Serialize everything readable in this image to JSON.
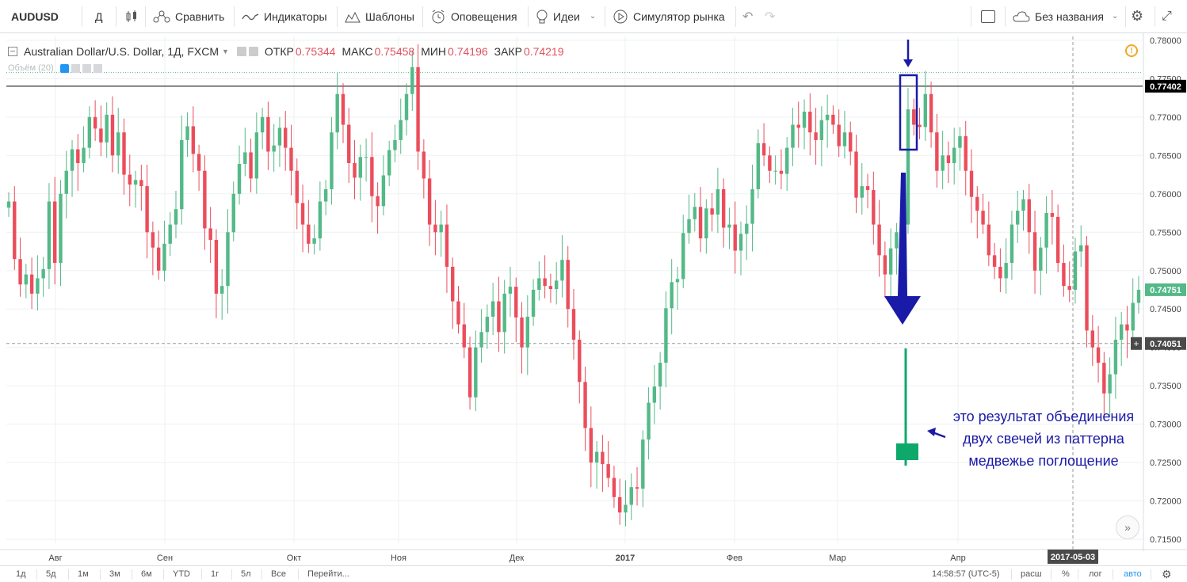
{
  "toolbar": {
    "symbol": "AUDUSD",
    "interval": "Д",
    "compare": "Сравнить",
    "indicators": "Индикаторы",
    "templates": "Шаблоны",
    "alerts": "Оповещения",
    "ideas": "Идеи",
    "simulator": "Симулятор рынка",
    "layout_name": "Без названия"
  },
  "legend": {
    "title": "Australian Dollar/U.S. Dollar, 1Д, FXCM",
    "open_label": "ОТКР",
    "open": "0.75344",
    "high_label": "МАКС",
    "high": "0.75458",
    "low_label": "МИН",
    "low": "0.74196",
    "close_label": "ЗАКР",
    "close": "0.74219",
    "volume": "Объём (20)"
  },
  "annotation": {
    "line1": "это результат объединения",
    "line2": "двух свечей из паттерна",
    "line3": "медвежье поглощение"
  },
  "price_axis": {
    "ticks": [
      "0.78000",
      "0.77500",
      "0.77000",
      "0.76500",
      "0.76000",
      "0.75500",
      "0.75000",
      "0.74500",
      "0.74000",
      "0.73500",
      "0.73000",
      "0.72500",
      "0.72000",
      "0.71500"
    ],
    "label_hline": "0.77402",
    "label_last": "0.74751",
    "label_cross": "0.74051"
  },
  "time_axis": {
    "labels": [
      "Авг",
      "Сен",
      "Окт",
      "Ноя",
      "Дек",
      "2017",
      "Фев",
      "Мар",
      "Апр"
    ],
    "crosshair_date": "2017-05-03"
  },
  "bottom": {
    "ranges": [
      "1д",
      "5д",
      "1м",
      "3м",
      "6м",
      "YTD",
      "1г",
      "5л",
      "Все"
    ],
    "goto": "Перейти...",
    "time": "14:58:57 (UTC-5)",
    "ext": "расш",
    "pct": "%",
    "log": "лог",
    "auto": "авто"
  },
  "colors": {
    "up": "#53b987",
    "down": "#eb4d5c",
    "annotation": "#1a1aa8",
    "accent_green": "#0fa86b",
    "auto_blue": "#2196f3"
  },
  "chart_data": {
    "type": "candlestick",
    "symbol": "Australian Dollar/U.S. Dollar, 1Д, FXCM",
    "ylim": [
      0.7145,
      0.7805
    ],
    "hline": 0.77402,
    "dotted_hline": 0.7758,
    "crosshair_price": 0.74051,
    "last_price": 0.74751,
    "closes": [
      0.759,
      0.7515,
      0.7482,
      0.7495,
      0.747,
      0.749,
      0.7502,
      0.759,
      0.751,
      0.76,
      0.763,
      0.7658,
      0.764,
      0.766,
      0.77,
      0.7685,
      0.7667,
      0.7703,
      0.765,
      0.768,
      0.7625,
      0.7612,
      0.7618,
      0.761,
      0.755,
      0.753,
      0.75,
      0.7535,
      0.756,
      0.758,
      0.767,
      0.7688,
      0.7652,
      0.763,
      0.7555,
      0.754,
      0.747,
      0.748,
      0.755,
      0.76,
      0.7639,
      0.7654,
      0.762,
      0.768,
      0.77,
      0.7655,
      0.7663,
      0.7686,
      0.766,
      0.763,
      0.7588,
      0.756,
      0.7535,
      0.7542,
      0.759,
      0.7606,
      0.768,
      0.773,
      0.769,
      0.764,
      0.7621,
      0.7648,
      0.7648,
      0.7597,
      0.7584,
      0.7624,
      0.7657,
      0.767,
      0.7696,
      0.773,
      0.7765,
      0.7655,
      0.762,
      0.756,
      0.755,
      0.756,
      0.7505,
      0.746,
      0.743,
      0.74,
      0.7335,
      0.74,
      0.742,
      0.744,
      0.746,
      0.742,
      0.747,
      0.7479,
      0.7439,
      0.74,
      0.744,
      0.7475,
      0.749,
      0.748,
      0.7476,
      0.7487,
      0.7514,
      0.745,
      0.741,
      0.7355,
      0.7295,
      0.725,
      0.7264,
      0.7248,
      0.723,
      0.7205,
      0.7185,
      0.7195,
      0.7218,
      0.7216,
      0.728,
      0.7328,
      0.7349,
      0.738,
      0.7451,
      0.7485,
      0.7489,
      0.7549,
      0.7567,
      0.7583,
      0.7542,
      0.7581,
      0.7573,
      0.7606,
      0.7556,
      0.756,
      0.7526,
      0.7548,
      0.7561,
      0.7606,
      0.7666,
      0.765,
      0.763,
      0.763,
      0.7626,
      0.766,
      0.769,
      0.7686,
      0.7707,
      0.768,
      0.767,
      0.7696,
      0.7703,
      0.769,
      0.7662,
      0.768,
      0.7655,
      0.7595,
      0.761,
      0.7605,
      0.756,
      0.752,
      0.7495,
      0.7529,
      0.755,
      0.756,
      0.771,
      0.769,
      0.7687,
      0.773,
      0.768,
      0.763,
      0.765,
      0.764,
      0.766,
      0.7675,
      0.763,
      0.7596,
      0.7578,
      0.756,
      0.752,
      0.7505,
      0.749,
      0.751,
      0.756,
      0.7578,
      0.7593,
      0.755,
      0.75,
      0.753,
      0.7575,
      0.757,
      0.751,
      0.748,
      0.7475,
      0.7525,
      0.7533,
      0.7422,
      0.74,
      0.738,
      0.734,
      0.7365,
      0.741,
      0.743,
      0.7422,
      0.7458,
      0.7475
    ]
  }
}
